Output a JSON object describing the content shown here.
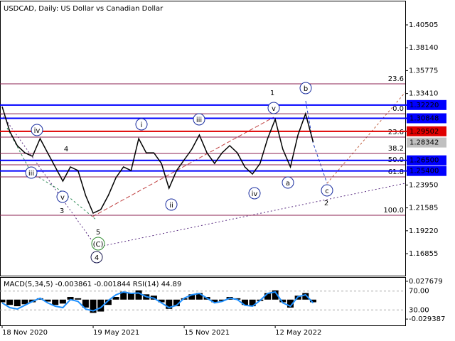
{
  "chart_data": [
    {
      "type": "line",
      "title": "USDCAD, Daily:  US Dollar vs Canadian Dollar",
      "categories": [
        "18 Nov 2020",
        null,
        null,
        null,
        null,
        null,
        null,
        null,
        null,
        null,
        null,
        null,
        "19 May 2021",
        null,
        null,
        null,
        null,
        null,
        null,
        null,
        null,
        null,
        null,
        null,
        "15 Nov 2021",
        null,
        null,
        null,
        null,
        null,
        null,
        null,
        null,
        null,
        null,
        null,
        "12 May 2022",
        null,
        null,
        null,
        null,
        null
      ],
      "values": [
        1.3206,
        1.2949,
        1.2802,
        1.2728,
        1.2692,
        1.2875,
        1.2728,
        1.2582,
        1.2435,
        1.2582,
        1.2545,
        1.2288,
        1.2104,
        1.2141,
        1.2288,
        1.2471,
        1.2582,
        1.2545,
        1.2875,
        1.2728,
        1.2728,
        1.2618,
        1.2361,
        1.2545,
        1.2655,
        1.2765,
        1.2912,
        1.2728,
        1.2618,
        1.2728,
        1.2802,
        1.2728,
        1.2582,
        1.2508,
        1.2618,
        1.2875,
        1.3074,
        1.2765,
        1.2582,
        1.2912,
        1.3132,
        1.2839
      ],
      "color": "#000000",
      "ylim": [
        1.1458,
        1.4293
      ],
      "yticks": [
        {
          "value": 1.40505,
          "label": "1.40505"
        },
        {
          "value": 1.3814,
          "label": "1.38140"
        },
        {
          "value": 1.35775,
          "label": "1.35775"
        },
        {
          "value": 1.3341,
          "label": "1.33410"
        },
        {
          "value": 1.2395,
          "label": "1.23950"
        },
        1.21585,
        {
          "value": 1.1922,
          "label": "1.19220"
        },
        1.16855
      ],
      "levels": [
        {
          "value": 1.3222,
          "label": "1.32220",
          "color": "#0000ff"
        },
        {
          "value": 1.30848,
          "label": "1.30848",
          "color": "#0000ff"
        },
        {
          "value": 1.29502,
          "label": "1.29502",
          "color": "#e00000"
        },
        {
          "value": 1.28342,
          "label": "1.28342",
          "color": "#c0c0c0"
        },
        {
          "value": 1.265,
          "label": "1.26500",
          "color": "#0000ff"
        },
        {
          "value": 1.254,
          "label": "1.25400",
          "color": "#0000ff"
        }
      ],
      "fib_levels": [
        {
          "value": 1.3441,
          "label": "23.6"
        },
        {
          "value": 1.3132,
          "label": "0.0"
        },
        {
          "value": 1.289,
          "label": "23.6"
        },
        {
          "value": 1.2721,
          "label": "38.2"
        },
        {
          "value": 1.2604,
          "label": "50.0"
        },
        {
          "value": 1.2479,
          "label": "61.8"
        },
        {
          "value": 1.2082,
          "label": "100.0"
        }
      ],
      "fib_color": "#8b2252",
      "annotations": [
        "iv",
        "iii",
        "v",
        "4",
        "3",
        "5",
        "(C)",
        "4",
        "i",
        "ii",
        "iii",
        "iv",
        "v",
        "1",
        "b",
        "a",
        "c",
        "2"
      ]
    },
    {
      "type": "bar",
      "title": "MACD(5,34,5) -0.003861 -0.001844 RSI(14) 44.89",
      "series": [
        {
          "type": "bar",
          "color": "#000000",
          "values": [
            -0.004,
            -0.008,
            -0.01,
            -0.007,
            -0.004,
            0.002,
            -0.003,
            -0.008,
            -0.006,
            0.004,
            0.002,
            -0.012,
            -0.02,
            -0.018,
            -0.008,
            0.004,
            0.012,
            0.01,
            0.014,
            0.008,
            0.006,
            -0.004,
            -0.014,
            -0.01,
            0.002,
            0.008,
            0.01,
            0.004,
            -0.004,
            -0.002,
            0.004,
            0.002,
            -0.008,
            -0.01,
            -0.002,
            0.01,
            0.014,
            -0.004,
            -0.012,
            0.006,
            0.01,
            -0.004
          ]
        },
        {
          "type": "line",
          "axis": "y2",
          "color": "#1e90ff",
          "values": [
            45,
            35,
            32,
            40,
            48,
            55,
            45,
            38,
            35,
            52,
            48,
            32,
            28,
            35,
            50,
            62,
            68,
            65,
            66,
            58,
            55,
            45,
            35,
            40,
            55,
            62,
            65,
            55,
            45,
            48,
            55,
            52,
            40,
            38,
            50,
            65,
            68,
            45,
            38,
            58,
            62,
            44.89
          ]
        }
      ],
      "ylim": [
        -0.0389,
        0.033
      ],
      "yticks": [
        0.027679,
        -0.029387
      ],
      "y2lim": [
        -2.6,
        98.1
      ],
      "y2ticks": [
        {
          "value": 70,
          "label": "70.00"
        },
        {
          "value": 30,
          "label": "30.00"
        }
      ],
      "grid": true
    }
  ]
}
